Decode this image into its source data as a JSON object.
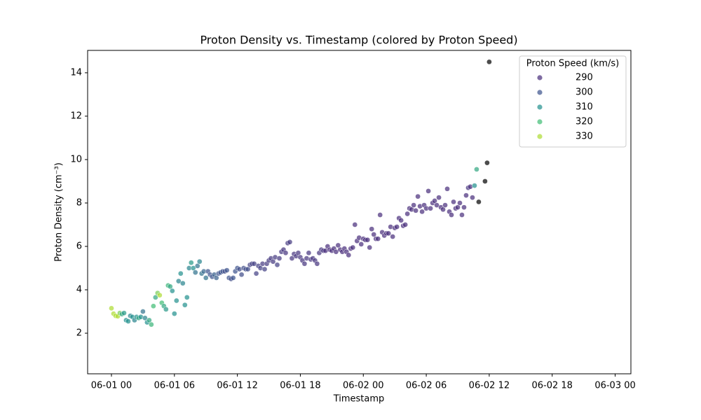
{
  "chart_data": {
    "type": "scatter",
    "title": "Proton Density vs. Timestamp (colored by Proton Speed)",
    "x_label": "Timestamp",
    "y_label": "Proton Density (cm⁻³)",
    "xlim": [
      -2.27,
      49.5
    ],
    "ylim": [
      0.13,
      15.03
    ],
    "xticks": [
      {
        "value": 0,
        "label": "06-01 00"
      },
      {
        "value": 6,
        "label": "06-01 06"
      },
      {
        "value": 12,
        "label": "06-01 12"
      },
      {
        "value": 18,
        "label": "06-01 18"
      },
      {
        "value": 24,
        "label": "06-02 00"
      },
      {
        "value": 30,
        "label": "06-02 06"
      },
      {
        "value": 36,
        "label": "06-02 12"
      },
      {
        "value": 42,
        "label": "06-02 18"
      },
      {
        "value": 48,
        "label": "06-03 00"
      }
    ],
    "yticks": [
      2,
      4,
      6,
      8,
      10,
      12,
      14
    ],
    "grid": false,
    "opacity": 0.7,
    "legend": {
      "title": "Proton Speed (km/s)",
      "loc": "upper right",
      "entries": [
        {
          "value": 290,
          "color": "#472c7a"
        },
        {
          "value": 300,
          "color": "#3b518b"
        },
        {
          "value": 310,
          "color": "#21908d"
        },
        {
          "value": 320,
          "color": "#3fbc73"
        },
        {
          "value": 330,
          "color": "#addc30"
        }
      ]
    },
    "x": [
      0,
      0.2,
      0.4,
      0.6,
      0.8,
      1.0,
      1.2,
      1.4,
      1.6,
      1.8,
      2.0,
      2.2,
      2.4,
      2.6,
      2.8,
      3.0,
      3.2,
      3.4,
      3.6,
      3.8,
      4.0,
      4.2,
      4.4,
      4.6,
      4.8,
      5.0,
      5.2,
      5.4,
      5.6,
      5.8,
      6.0,
      6.2,
      6.4,
      6.6,
      6.8,
      7.0,
      7.2,
      7.4,
      7.6,
      7.8,
      8.0,
      8.2,
      8.4,
      8.6,
      8.8,
      9.0,
      9.2,
      9.4,
      9.6,
      9.8,
      10.0,
      10.2,
      10.4,
      10.6,
      10.8,
      11.0,
      11.2,
      11.4,
      11.6,
      11.8,
      12.0,
      12.2,
      12.4,
      12.6,
      12.8,
      13.0,
      13.2,
      13.4,
      13.6,
      13.8,
      14.0,
      14.2,
      14.4,
      14.6,
      14.8,
      15.0,
      15.2,
      15.4,
      15.6,
      15.8,
      16.0,
      16.2,
      16.4,
      16.6,
      16.8,
      17.0,
      17.2,
      17.4,
      17.6,
      17.8,
      18.0,
      18.2,
      18.4,
      18.6,
      18.8,
      19.0,
      19.2,
      19.4,
      19.6,
      19.8,
      20.0,
      20.2,
      20.4,
      20.6,
      20.8,
      21.0,
      21.2,
      21.4,
      21.6,
      21.8,
      22.0,
      22.2,
      22.4,
      22.6,
      22.8,
      23.0,
      23.2,
      23.4,
      23.6,
      23.8,
      24.0,
      24.2,
      24.4,
      24.6,
      24.8,
      25.0,
      25.2,
      25.4,
      25.6,
      25.8,
      26.0,
      26.2,
      26.4,
      26.6,
      26.8,
      27.0,
      27.2,
      27.4,
      27.6,
      27.8,
      28.0,
      28.2,
      28.4,
      28.6,
      28.8,
      29.0,
      29.2,
      29.4,
      29.6,
      29.8,
      30.0,
      30.2,
      30.4,
      30.6,
      30.8,
      31.0,
      31.2,
      31.4,
      31.6,
      31.8,
      32.0,
      32.2,
      32.4,
      32.6,
      32.8,
      33.0,
      33.2,
      33.4,
      33.6,
      33.8,
      34.0,
      34.2,
      34.4,
      34.6,
      34.8,
      35.0,
      35.6,
      35.8,
      36.0
    ],
    "y": [
      3.15,
      2.9,
      2.8,
      2.78,
      2.93,
      2.88,
      2.93,
      2.6,
      2.55,
      2.8,
      2.75,
      2.6,
      2.75,
      2.7,
      2.75,
      3.0,
      2.7,
      2.5,
      2.6,
      2.4,
      3.25,
      3.65,
      3.85,
      3.75,
      3.4,
      3.25,
      3.1,
      4.2,
      4.15,
      3.95,
      2.9,
      3.5,
      4.4,
      4.75,
      4.3,
      3.3,
      3.65,
      5.0,
      5.25,
      5.0,
      4.8,
      5.1,
      5.3,
      4.75,
      4.85,
      4.55,
      4.85,
      4.7,
      4.6,
      4.7,
      4.55,
      4.75,
      4.8,
      4.85,
      4.85,
      4.9,
      4.55,
      4.5,
      4.55,
      4.85,
      5.0,
      4.95,
      4.7,
      5.0,
      4.95,
      4.95,
      5.15,
      5.2,
      5.2,
      4.75,
      5.1,
      5.0,
      5.2,
      4.95,
      5.2,
      5.35,
      5.45,
      5.3,
      5.5,
      5.15,
      5.45,
      5.75,
      5.85,
      5.7,
      6.15,
      6.2,
      5.45,
      5.65,
      5.55,
      5.7,
      5.5,
      5.35,
      5.2,
      5.45,
      5.7,
      5.4,
      5.45,
      5.35,
      5.2,
      5.7,
      5.85,
      5.8,
      5.8,
      6.0,
      5.85,
      5.8,
      5.9,
      5.75,
      6.05,
      5.85,
      5.75,
      5.9,
      5.75,
      5.6,
      5.9,
      5.95,
      7.0,
      6.25,
      6.4,
      6.1,
      6.35,
      6.3,
      6.3,
      5.95,
      6.8,
      6.55,
      6.35,
      6.35,
      7.45,
      6.65,
      6.5,
      6.6,
      6.6,
      6.9,
      6.45,
      6.85,
      6.9,
      7.3,
      7.2,
      6.95,
      7.0,
      7.5,
      7.75,
      7.7,
      7.9,
      7.65,
      8.3,
      7.85,
      7.6,
      7.9,
      7.75,
      8.55,
      7.75,
      8.0,
      8.1,
      7.9,
      8.25,
      7.8,
      7.7,
      7.9,
      8.65,
      7.6,
      7.45,
      8.05,
      7.75,
      7.8,
      8.0,
      7.45,
      7.8,
      8.35,
      8.7,
      8.75,
      8.25,
      8.8,
      9.55,
      8.05,
      9.0,
      9.85,
      14.5
    ],
    "hue": [
      335,
      335,
      333,
      330,
      325,
      315,
      312,
      310,
      310,
      308,
      310,
      308,
      310,
      315,
      310,
      305,
      308,
      310,
      315,
      318,
      320,
      315,
      325,
      330,
      320,
      315,
      312,
      318,
      315,
      310,
      310,
      310,
      308,
      310,
      308,
      310,
      310,
      308,
      312,
      310,
      305,
      305,
      308,
      305,
      303,
      305,
      300,
      300,
      300,
      302,
      302,
      300,
      300,
      300,
      298,
      300,
      300,
      298,
      300,
      300,
      300,
      298,
      298,
      298,
      298,
      298,
      295,
      295,
      295,
      295,
      295,
      295,
      293,
      295,
      293,
      293,
      293,
      293,
      293,
      295,
      293,
      293,
      292,
      292,
      293,
      293,
      292,
      292,
      292,
      292,
      292,
      292,
      292,
      292,
      292,
      292,
      292,
      292,
      292,
      292,
      292,
      292,
      290,
      290,
      290,
      290,
      290,
      290,
      290,
      290,
      290,
      290,
      290,
      290,
      290,
      290,
      290,
      290,
      290,
      290,
      290,
      290,
      290,
      290,
      290,
      290,
      290,
      290,
      288,
      288,
      288,
      288,
      288,
      288,
      288,
      288,
      288,
      288,
      288,
      288,
      288,
      288,
      288,
      288,
      288,
      288,
      288,
      288,
      288,
      288,
      288,
      288,
      288,
      288,
      288,
      288,
      288,
      288,
      288,
      288,
      288,
      288,
      288,
      288,
      288,
      288,
      288,
      288,
      288,
      290,
      292,
      288,
      290,
      310,
      315
    ]
  }
}
